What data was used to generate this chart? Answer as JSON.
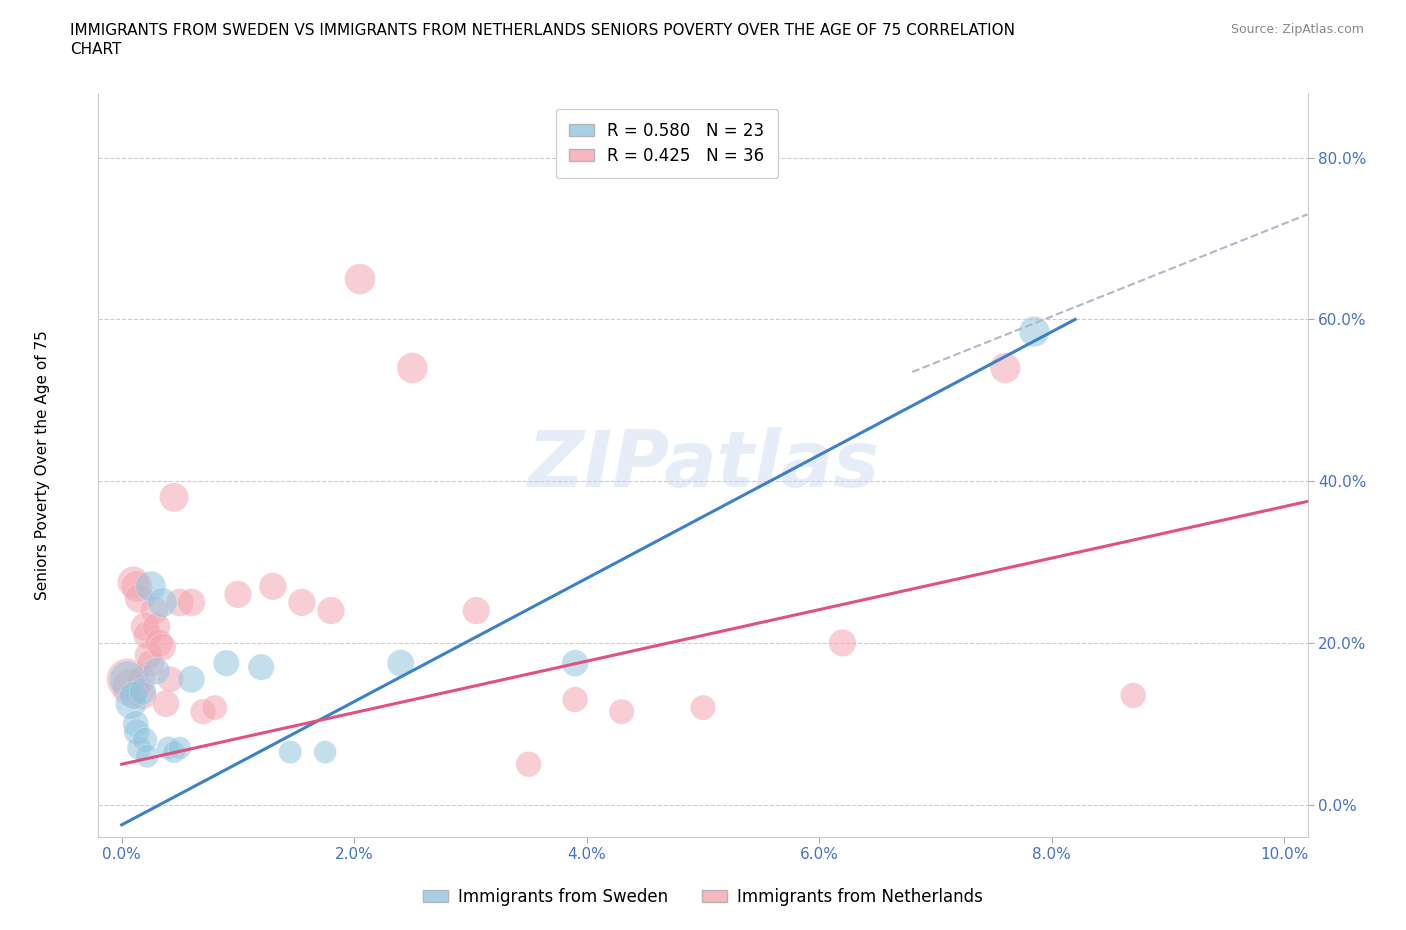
{
  "title_line1": "IMMIGRANTS FROM SWEDEN VS IMMIGRANTS FROM NETHERLANDS SENIORS POVERTY OVER THE AGE OF 75 CORRELATION",
  "title_line2": "CHART",
  "source": "Source: ZipAtlas.com",
  "ylabel": "Seniors Poverty Over the Age of 75",
  "x_tick_labels": [
    "0.0%",
    "2.0%",
    "4.0%",
    "6.0%",
    "8.0%",
    "10.0%"
  ],
  "y_tick_labels": [
    "0.0%",
    "20.0%",
    "40.0%",
    "60.0%",
    "80.0%"
  ],
  "xlim": [
    -0.002,
    0.102
  ],
  "ylim": [
    -0.04,
    0.88
  ],
  "watermark": "ZIPatlas",
  "legend_sweden": "Immigrants from Sweden",
  "legend_netherlands": "Immigrants from Netherlands",
  "r_sweden": "R = 0.580",
  "n_sweden": "N = 23",
  "r_netherlands": "R = 0.425",
  "n_netherlands": "N = 36",
  "color_sweden": "#92c5de",
  "color_netherlands": "#f4a5b0",
  "line_color_sweden": "#3b80c8",
  "line_color_netherlands": "#e05080",
  "sweden_points": [
    [
      0.0005,
      0.155
    ],
    [
      0.0008,
      0.125
    ],
    [
      0.001,
      0.135
    ],
    [
      0.0012,
      0.1
    ],
    [
      0.0013,
      0.09
    ],
    [
      0.0015,
      0.07
    ],
    [
      0.0018,
      0.14
    ],
    [
      0.002,
      0.08
    ],
    [
      0.0022,
      0.06
    ],
    [
      0.0025,
      0.27
    ],
    [
      0.003,
      0.165
    ],
    [
      0.0035,
      0.25
    ],
    [
      0.004,
      0.07
    ],
    [
      0.0045,
      0.065
    ],
    [
      0.005,
      0.07
    ],
    [
      0.006,
      0.155
    ],
    [
      0.009,
      0.175
    ],
    [
      0.012,
      0.17
    ],
    [
      0.0145,
      0.065
    ],
    [
      0.0175,
      0.065
    ],
    [
      0.024,
      0.175
    ],
    [
      0.039,
      0.175
    ],
    [
      0.0785,
      0.585
    ]
  ],
  "netherlands_points": [
    [
      0.0005,
      0.155
    ],
    [
      0.0008,
      0.145
    ],
    [
      0.001,
      0.275
    ],
    [
      0.0013,
      0.27
    ],
    [
      0.0015,
      0.255
    ],
    [
      0.0017,
      0.155
    ],
    [
      0.0018,
      0.135
    ],
    [
      0.002,
      0.22
    ],
    [
      0.0022,
      0.21
    ],
    [
      0.0023,
      0.185
    ],
    [
      0.0025,
      0.175
    ],
    [
      0.0028,
      0.24
    ],
    [
      0.003,
      0.22
    ],
    [
      0.0032,
      0.2
    ],
    [
      0.0035,
      0.195
    ],
    [
      0.0038,
      0.125
    ],
    [
      0.0042,
      0.155
    ],
    [
      0.0045,
      0.38
    ],
    [
      0.005,
      0.25
    ],
    [
      0.006,
      0.25
    ],
    [
      0.007,
      0.115
    ],
    [
      0.008,
      0.12
    ],
    [
      0.01,
      0.26
    ],
    [
      0.013,
      0.27
    ],
    [
      0.0155,
      0.25
    ],
    [
      0.018,
      0.24
    ],
    [
      0.0205,
      0.65
    ],
    [
      0.025,
      0.54
    ],
    [
      0.0305,
      0.24
    ],
    [
      0.035,
      0.05
    ],
    [
      0.039,
      0.13
    ],
    [
      0.043,
      0.115
    ],
    [
      0.05,
      0.12
    ],
    [
      0.062,
      0.2
    ],
    [
      0.076,
      0.54
    ],
    [
      0.087,
      0.135
    ]
  ],
  "sweden_sizes": [
    700,
    500,
    400,
    350,
    350,
    300,
    380,
    320,
    280,
    480,
    380,
    450,
    280,
    260,
    270,
    380,
    360,
    360,
    280,
    270,
    380,
    370,
    480
  ],
  "netherlands_sizes": [
    900,
    750,
    520,
    510,
    430,
    420,
    400,
    420,
    410,
    400,
    390,
    410,
    400,
    400,
    390,
    380,
    350,
    440,
    400,
    400,
    340,
    330,
    390,
    390,
    390,
    390,
    490,
    490,
    390,
    340,
    340,
    330,
    330,
    390,
    480,
    340
  ],
  "blue_line_x": [
    0.0,
    0.082
  ],
  "blue_line_y": [
    -0.025,
    0.6
  ],
  "pink_line_x": [
    0.0,
    0.102
  ],
  "pink_line_y": [
    0.05,
    0.375
  ],
  "dash_line_x": [
    0.068,
    0.102
  ],
  "dash_line_y": [
    0.535,
    0.73
  ]
}
